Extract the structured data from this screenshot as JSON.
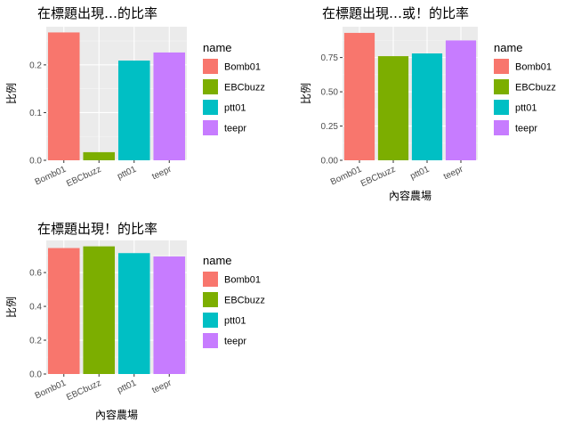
{
  "chart_data": [
    {
      "type": "bar",
      "title": "在標題出現…的比率",
      "xlabel": "",
      "ylabel": "比例",
      "categories": [
        "Bomb01",
        "EBCbuzz",
        "ptt01",
        "teepr"
      ],
      "values": [
        0.268,
        0.017,
        0.209,
        0.226
      ],
      "ylim": [
        0,
        0.28
      ],
      "yticks": [
        0.0,
        0.1,
        0.2
      ],
      "ytick_labels": [
        "0.0",
        "0.1",
        "0.2"
      ],
      "legend": {
        "title": "name",
        "position": "right"
      },
      "grid": true
    },
    {
      "type": "bar",
      "title": "在標題出現…或！的比率",
      "xlabel": "內容農場",
      "ylabel": "比例",
      "categories": [
        "Bomb01",
        "EBCbuzz",
        "ptt01",
        "teepr"
      ],
      "values": [
        0.93,
        0.76,
        0.78,
        0.875
      ],
      "ylim": [
        0,
        0.975
      ],
      "yticks": [
        0.0,
        0.25,
        0.5,
        0.75
      ],
      "ytick_labels": [
        "0.00",
        "0.25",
        "0.50",
        "0.75"
      ],
      "legend": {
        "title": "name",
        "position": "right"
      },
      "grid": true
    },
    {
      "type": "bar",
      "title": "在標題出現！的比率",
      "xlabel": "內容農場",
      "ylabel": "比例",
      "categories": [
        "Bomb01",
        "EBCbuzz",
        "ptt01",
        "teepr"
      ],
      "values": [
        0.745,
        0.755,
        0.715,
        0.695
      ],
      "ylim": [
        0,
        0.79
      ],
      "yticks": [
        0.0,
        0.2,
        0.4,
        0.6
      ],
      "ytick_labels": [
        "0.0",
        "0.2",
        "0.4",
        "0.6"
      ],
      "legend": {
        "title": "name",
        "position": "right"
      },
      "grid": true
    }
  ],
  "colors": {
    "Bomb01": "#F8766D",
    "EBCbuzz": "#7CAE00",
    "ptt01": "#00BFC4",
    "teepr": "#C77CFF",
    "panel_background": "#EBEBEB",
    "grid_major": "#FFFFFF",
    "grid_minor": "#F5F5F5"
  }
}
